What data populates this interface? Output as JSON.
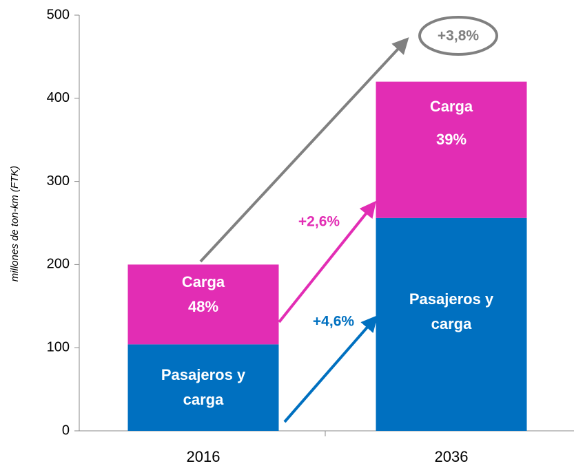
{
  "chart_data": {
    "type": "bar",
    "stacked": true,
    "y_label": "millones de ton-km (FTK)",
    "categories": [
      "2016",
      "2036"
    ],
    "series": [
      {
        "name": "Pasajeros y carga",
        "color": "#0070c0",
        "values": [
          104,
          256
        ]
      },
      {
        "name": "Carga",
        "color": "#e22db4",
        "values": [
          96,
          164
        ],
        "shares": [
          "48%",
          "39%"
        ]
      }
    ],
    "annotations": {
      "total_growth": "+3,8%",
      "carga_growth": "+2,6%",
      "pasajeros_growth": "+4,6%"
    },
    "ylim": [
      0,
      500
    ],
    "yticks": [
      0,
      100,
      200,
      300,
      400,
      500
    ]
  }
}
